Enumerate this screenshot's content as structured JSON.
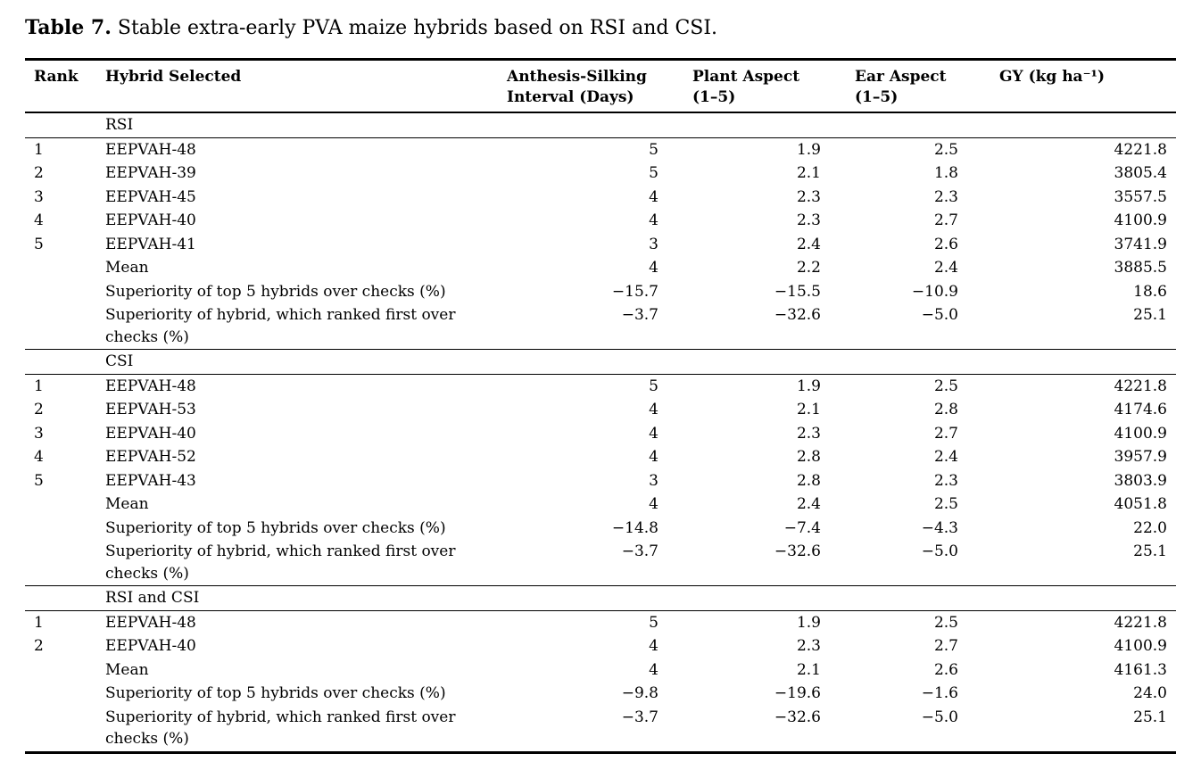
{
  "colors": {
    "background": "#ffffff",
    "text": "#000000",
    "rule": "#000000"
  },
  "caption": {
    "label": "Table 7.",
    "text": "Stable extra-early PVA maize hybrids based on RSI and CSI."
  },
  "table": {
    "headers": [
      {
        "line1": "Rank",
        "line2": ""
      },
      {
        "line1": "Hybrid Selected",
        "line2": ""
      },
      {
        "line1": "Anthesis-Silking",
        "line2": "Interval (Days)"
      },
      {
        "line1": "Plant Aspect",
        "line2": "(1–5)"
      },
      {
        "line1": "Ear Aspect",
        "line2": "(1–5)"
      },
      {
        "line1": "GY (kg ha⁻¹)",
        "line2": ""
      }
    ],
    "sections": [
      {
        "label": "RSI",
        "rows": [
          {
            "rank": "1",
            "name": "EEPVAH-48",
            "asi": "5",
            "plant": "1.9",
            "ear": "2.5",
            "gy": "4221.8"
          },
          {
            "rank": "2",
            "name": "EEPVAH-39",
            "asi": "5",
            "plant": "2.1",
            "ear": "1.8",
            "gy": "3805.4"
          },
          {
            "rank": "3",
            "name": "EEPVAH-45",
            "asi": "4",
            "plant": "2.3",
            "ear": "2.3",
            "gy": "3557.5"
          },
          {
            "rank": "4",
            "name": "EEPVAH-40",
            "asi": "4",
            "plant": "2.3",
            "ear": "2.7",
            "gy": "4100.9"
          },
          {
            "rank": "5",
            "name": "EEPVAH-41",
            "asi": "3",
            "plant": "2.4",
            "ear": "2.6",
            "gy": "3741.9"
          },
          {
            "rank": "",
            "name": "Mean",
            "asi": "4",
            "plant": "2.2",
            "ear": "2.4",
            "gy": "3885.5"
          },
          {
            "rank": "",
            "name": "Superiority of top 5 hybrids over checks (%)",
            "asi": "−15.7",
            "plant": "−15.5",
            "ear": "−10.9",
            "gy": "18.6"
          },
          {
            "rank": "",
            "name": "Superiority of hybrid, which ranked first over checks (%)",
            "asi": "−3.7",
            "plant": "−32.6",
            "ear": "−5.0",
            "gy": "25.1"
          }
        ]
      },
      {
        "label": "CSI",
        "rows": [
          {
            "rank": "1",
            "name": "EEPVAH-48",
            "asi": "5",
            "plant": "1.9",
            "ear": "2.5",
            "gy": "4221.8"
          },
          {
            "rank": "2",
            "name": "EEPVAH-53",
            "asi": "4",
            "plant": "2.1",
            "ear": "2.8",
            "gy": "4174.6"
          },
          {
            "rank": "3",
            "name": "EEPVAH-40",
            "asi": "4",
            "plant": "2.3",
            "ear": "2.7",
            "gy": "4100.9"
          },
          {
            "rank": "4",
            "name": "EEPVAH-52",
            "asi": "4",
            "plant": "2.8",
            "ear": "2.4",
            "gy": "3957.9"
          },
          {
            "rank": "5",
            "name": "EEPVAH-43",
            "asi": "3",
            "plant": "2.8",
            "ear": "2.3",
            "gy": "3803.9"
          },
          {
            "rank": "",
            "name": "Mean",
            "asi": "4",
            "plant": "2.4",
            "ear": "2.5",
            "gy": "4051.8"
          },
          {
            "rank": "",
            "name": "Superiority of top 5 hybrids over checks (%)",
            "asi": "−14.8",
            "plant": "−7.4",
            "ear": "−4.3",
            "gy": "22.0"
          },
          {
            "rank": "",
            "name": "Superiority of hybrid, which ranked first over checks (%)",
            "asi": "−3.7",
            "plant": "−32.6",
            "ear": "−5.0",
            "gy": "25.1"
          }
        ]
      },
      {
        "label": "RSI and CSI",
        "rows": [
          {
            "rank": "1",
            "name": "EEPVAH-48",
            "asi": "5",
            "plant": "1.9",
            "ear": "2.5",
            "gy": "4221.8"
          },
          {
            "rank": "2",
            "name": "EEPVAH-40",
            "asi": "4",
            "plant": "2.3",
            "ear": "2.7",
            "gy": "4100.9"
          },
          {
            "rank": "",
            "name": "Mean",
            "asi": "4",
            "plant": "2.1",
            "ear": "2.6",
            "gy": "4161.3"
          },
          {
            "rank": "",
            "name": "Superiority of top 5 hybrids over checks (%)",
            "asi": "−9.8",
            "plant": "−19.6",
            "ear": "−1.6",
            "gy": "24.0"
          },
          {
            "rank": "",
            "name": "Superiority of hybrid, which ranked first over checks (%)",
            "asi": "−3.7",
            "plant": "−32.6",
            "ear": "−5.0",
            "gy": "25.1"
          }
        ]
      }
    ]
  }
}
